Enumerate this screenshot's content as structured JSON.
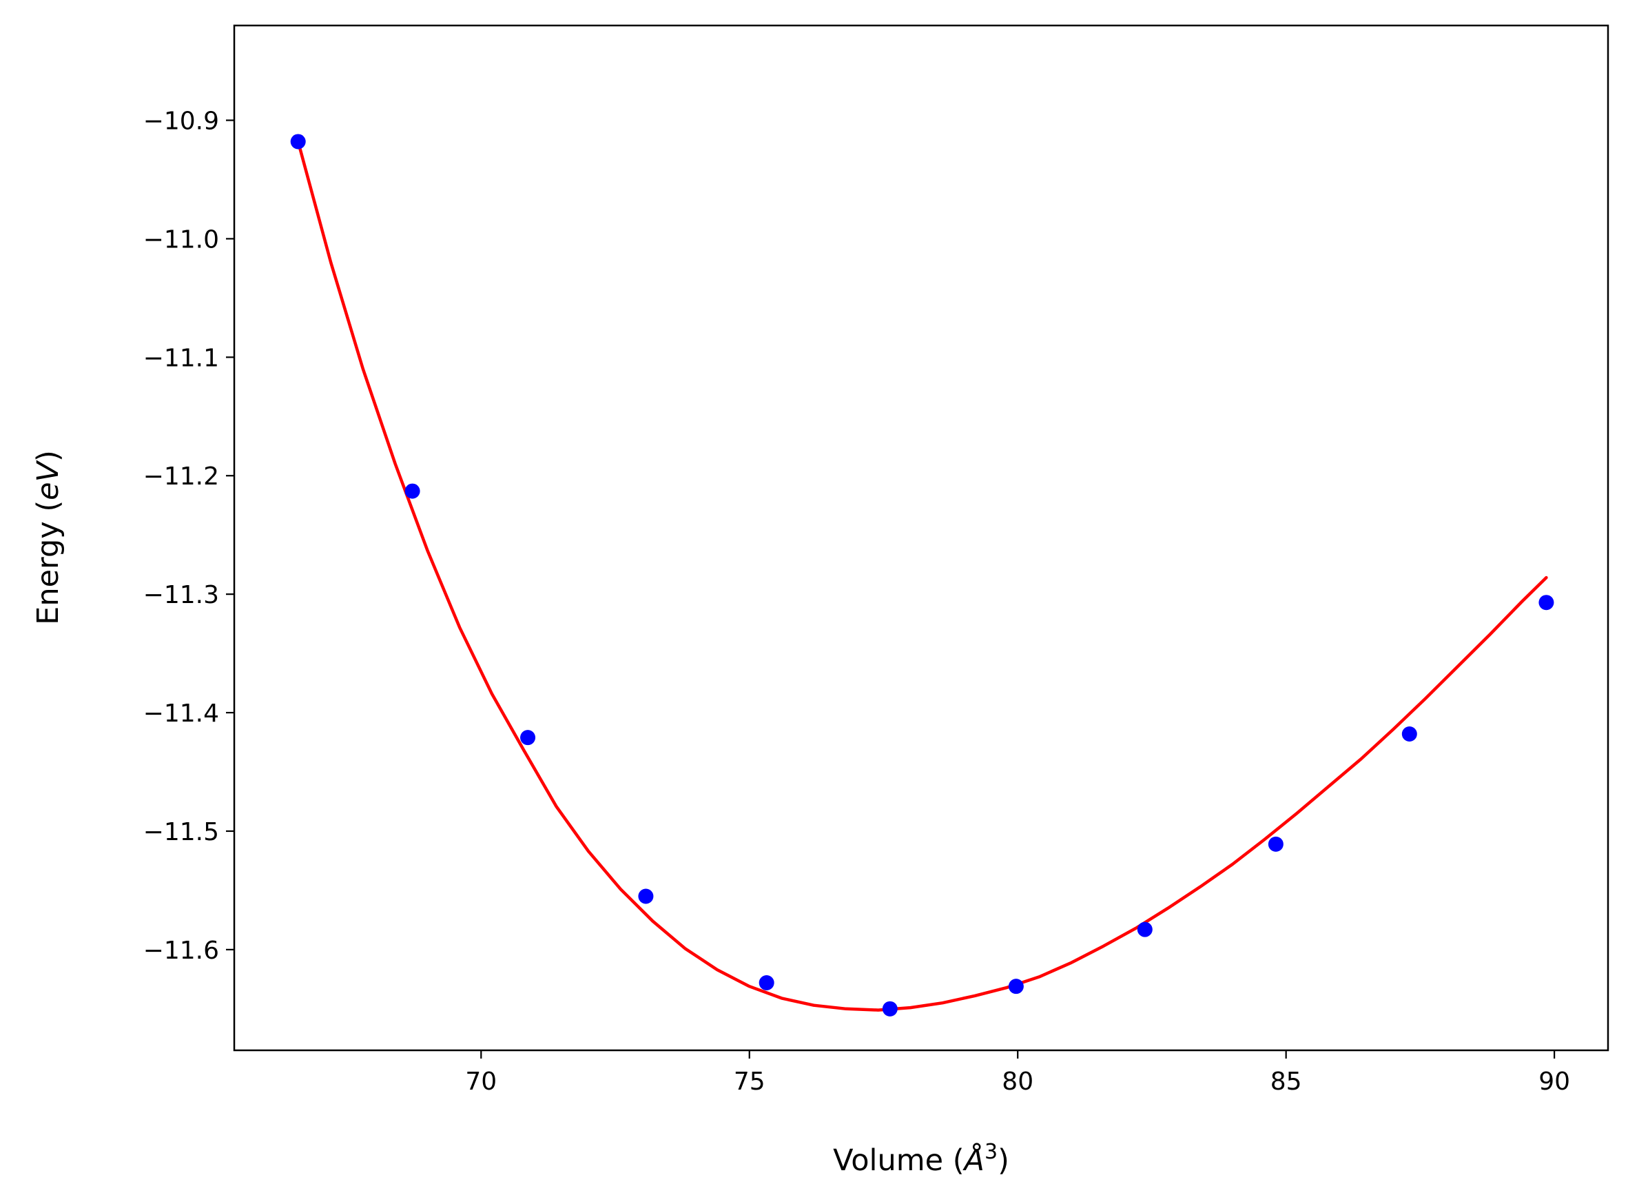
{
  "chart_data": {
    "type": "scatter",
    "title": "",
    "xlabel": "Volume",
    "xlabel_unit_prefix": "(",
    "xlabel_unit_symbol": "Å",
    "xlabel_unit_exp": "3",
    "xlabel_unit_suffix": ")",
    "ylabel": "Energy",
    "ylabel_unit_prefix": "(",
    "ylabel_unit_symbol": "eV",
    "ylabel_unit_suffix": ")",
    "xlim": [
      65.4,
      91.0
    ],
    "ylim": [
      -11.685,
      -10.82
    ],
    "xticks": [
      70,
      75,
      80,
      85,
      90
    ],
    "xtick_labels": [
      "70",
      "75",
      "80",
      "85",
      "90"
    ],
    "yticks": [
      -10.9,
      -11.0,
      -11.1,
      -11.2,
      -11.3,
      -11.4,
      -11.5,
      -11.6
    ],
    "ytick_labels": [
      "−10.9",
      "−11.0",
      "−11.1",
      "−11.2",
      "−11.3",
      "−11.4",
      "−11.5",
      "−11.6"
    ],
    "grid": false,
    "series": [
      {
        "kind": "points",
        "color": "#0000ff",
        "x": [
          66.59,
          68.72,
          70.87,
          73.07,
          75.32,
          77.62,
          79.97,
          82.37,
          84.81,
          87.3,
          89.85
        ],
        "y": [
          -10.918,
          -11.213,
          -11.421,
          -11.555,
          -11.628,
          -11.65,
          -11.631,
          -11.583,
          -11.511,
          -11.418,
          -11.307
        ]
      },
      {
        "kind": "fit-line",
        "color": "#ff0000",
        "x": [
          66.59,
          67.2,
          67.8,
          68.4,
          69.0,
          69.6,
          70.2,
          70.8,
          71.4,
          72.0,
          72.6,
          73.2,
          73.8,
          74.4,
          75.0,
          75.6,
          76.2,
          76.8,
          77.4,
          78.0,
          78.6,
          79.2,
          79.8,
          80.4,
          81.0,
          81.6,
          82.2,
          82.8,
          83.4,
          84.0,
          84.6,
          85.2,
          85.8,
          86.4,
          87.0,
          87.6,
          88.2,
          88.8,
          89.4,
          89.85
        ],
        "y": [
          -10.918,
          -11.02,
          -11.11,
          -11.19,
          -11.263,
          -11.328,
          -11.384,
          -11.432,
          -11.479,
          -11.517,
          -11.549,
          -11.576,
          -11.599,
          -11.617,
          -11.631,
          -11.641,
          -11.647,
          -11.65,
          -11.651,
          -11.649,
          -11.645,
          -11.639,
          -11.632,
          -11.623,
          -11.611,
          -11.597,
          -11.582,
          -11.565,
          -11.547,
          -11.528,
          -11.507,
          -11.485,
          -11.462,
          -11.439,
          -11.414,
          -11.388,
          -11.361,
          -11.334,
          -11.306,
          -11.286
        ]
      }
    ]
  }
}
